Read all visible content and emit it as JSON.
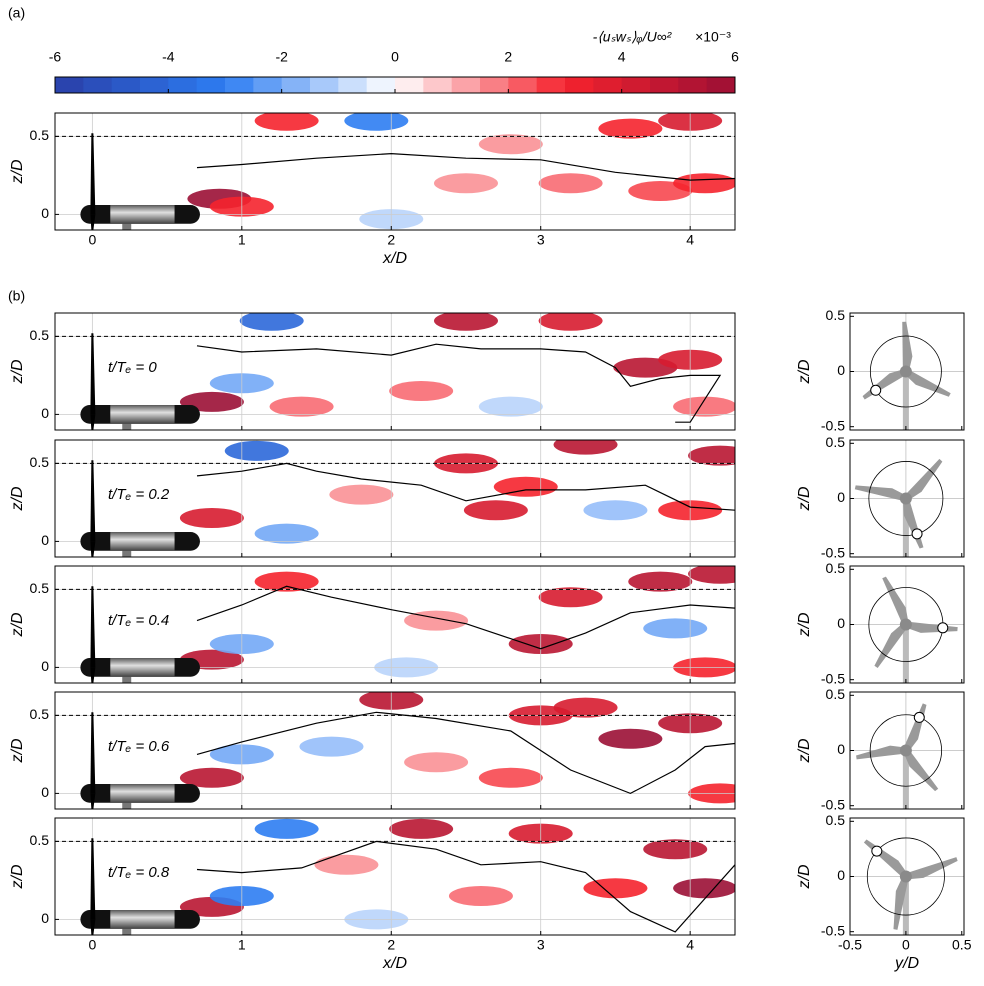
{
  "panel_labels": [
    "(a)",
    "(b)"
  ],
  "chart_data": [
    {
      "type": "colorbar",
      "title": "-⟨uₛwₛ⟩ᵩ/U∞²",
      "multiplier": "×10⁻³",
      "xlim": [
        -6,
        6
      ],
      "xticks": [
        -6,
        -4,
        -2,
        0,
        2,
        4,
        6
      ],
      "level_step": 0.5,
      "colormap": [
        {
          "value": -6,
          "color": "#2a3fa8"
        },
        {
          "value": -3,
          "color": "#2d7df2"
        },
        {
          "value": 0,
          "color": "#ffffff"
        },
        {
          "value": 3,
          "color": "#f5232d"
        },
        {
          "value": 6,
          "color": "#9b0f35"
        }
      ]
    },
    {
      "type": "contour",
      "xlabel": "x/D",
      "ylabel": "z/D",
      "xlim": [
        -0.25,
        4.3
      ],
      "ylim": [
        -0.1,
        0.65
      ],
      "xticks": [
        0,
        1,
        2,
        3,
        4
      ],
      "yticks": [
        0,
        0.5
      ],
      "hline": 0.5,
      "grid": true,
      "contour": {
        "x": [
          0.7,
          1.0,
          1.5,
          2.0,
          2.5,
          3.0,
          3.5,
          4.0,
          4.3
        ],
        "z": [
          0.3,
          0.32,
          0.36,
          0.39,
          0.36,
          0.35,
          0.27,
          0.22,
          0.23
        ]
      },
      "regions": [
        {
          "x": 0.85,
          "z": 0.1,
          "value": 6
        },
        {
          "x": 1.0,
          "z": 0.05,
          "value": 3
        },
        {
          "x": 2.5,
          "z": 0.2,
          "value": 1.5
        },
        {
          "x": 3.2,
          "z": 0.2,
          "value": 2
        },
        {
          "x": 3.8,
          "z": 0.15,
          "value": 2.5
        },
        {
          "x": 4.1,
          "z": 0.2,
          "value": 3
        },
        {
          "x": 3.6,
          "z": 0.55,
          "value": 3
        },
        {
          "x": 4.0,
          "z": 0.6,
          "value": 4
        },
        {
          "x": 2.0,
          "z": -0.03,
          "value": -1
        },
        {
          "x": 1.3,
          "z": 0.6,
          "value": 3
        },
        {
          "x": 1.9,
          "z": 0.6,
          "value": -3
        },
        {
          "x": 2.8,
          "z": 0.45,
          "value": 1.5
        }
      ]
    },
    {
      "type": "contour",
      "label": "t/Tₑ = 0",
      "ylabel": "z/D",
      "xlim": [
        -0.25,
        4.3
      ],
      "ylim": [
        -0.1,
        0.65
      ],
      "xticks": [
        0,
        1,
        2,
        3,
        4
      ],
      "yticks": [
        0,
        0.5
      ],
      "hline": 0.5,
      "grid": true,
      "contour": {
        "x": [
          0.7,
          1.0,
          1.5,
          2.0,
          2.3,
          2.6,
          3.0,
          3.3,
          3.5,
          3.6,
          3.8,
          4.0,
          4.2,
          4.1,
          4.0,
          3.9
        ],
        "z": [
          0.44,
          0.4,
          0.42,
          0.38,
          0.45,
          0.42,
          0.42,
          0.4,
          0.3,
          0.18,
          0.23,
          0.25,
          0.25,
          0.1,
          -0.05,
          -0.05
        ]
      },
      "regions": [
        {
          "x": 3.7,
          "z": 0.3,
          "value": 5
        },
        {
          "x": 4.0,
          "z": 0.35,
          "value": 4
        },
        {
          "x": 2.5,
          "z": 0.6,
          "value": 5
        },
        {
          "x": 3.2,
          "z": 0.6,
          "value": 4
        },
        {
          "x": 2.2,
          "z": 0.15,
          "value": 2
        },
        {
          "x": 1.4,
          "z": 0.05,
          "value": 2
        },
        {
          "x": 0.8,
          "z": 0.08,
          "value": 6
        },
        {
          "x": 1.0,
          "z": 0.2,
          "value": -2
        },
        {
          "x": 2.8,
          "z": 0.05,
          "value": -1
        },
        {
          "x": 4.1,
          "z": 0.05,
          "value": 2
        },
        {
          "x": 1.2,
          "z": 0.6,
          "value": -4
        }
      ]
    },
    {
      "type": "contour",
      "label": "t/Tₑ = 0.2",
      "ylabel": "z/D",
      "xlim": [
        -0.25,
        4.3
      ],
      "ylim": [
        -0.1,
        0.65
      ],
      "xticks": [
        0,
        1,
        2,
        3,
        4
      ],
      "yticks": [
        0,
        0.5
      ],
      "hline": 0.5,
      "grid": true,
      "contour": {
        "x": [
          0.7,
          1.0,
          1.3,
          1.5,
          1.8,
          2.2,
          2.5,
          2.9,
          3.3,
          3.7,
          4.0,
          4.3
        ],
        "z": [
          0.42,
          0.45,
          0.5,
          0.45,
          0.4,
          0.36,
          0.26,
          0.33,
          0.33,
          0.36,
          0.22,
          0.2
        ]
      },
      "regions": [
        {
          "x": 2.7,
          "z": 0.2,
          "value": 4
        },
        {
          "x": 2.9,
          "z": 0.35,
          "value": 3
        },
        {
          "x": 3.3,
          "z": 0.62,
          "value": 5
        },
        {
          "x": 4.2,
          "z": 0.55,
          "value": 5
        },
        {
          "x": 4.0,
          "z": 0.2,
          "value": 3
        },
        {
          "x": 2.5,
          "z": 0.5,
          "value": 4
        },
        {
          "x": 0.8,
          "z": 0.15,
          "value": 4
        },
        {
          "x": 1.3,
          "z": 0.05,
          "value": -2
        },
        {
          "x": 3.5,
          "z": 0.2,
          "value": -1.5
        },
        {
          "x": 1.8,
          "z": 0.3,
          "value": 1.5
        },
        {
          "x": 1.1,
          "z": 0.58,
          "value": -4
        }
      ]
    },
    {
      "type": "contour",
      "label": "t/Tₑ = 0.4",
      "ylabel": "z/D",
      "xlim": [
        -0.25,
        4.3
      ],
      "ylim": [
        -0.1,
        0.65
      ],
      "xticks": [
        0,
        1,
        2,
        3,
        4
      ],
      "yticks": [
        0,
        0.5
      ],
      "hline": 0.5,
      "grid": true,
      "contour": {
        "x": [
          0.7,
          1.0,
          1.3,
          1.6,
          2.0,
          2.5,
          3.0,
          3.3,
          3.6,
          4.0,
          4.3
        ],
        "z": [
          0.3,
          0.4,
          0.52,
          0.45,
          0.37,
          0.28,
          0.12,
          0.22,
          0.35,
          0.4,
          0.38
        ]
      },
      "regions": [
        {
          "x": 3.0,
          "z": 0.15,
          "value": 5
        },
        {
          "x": 3.2,
          "z": 0.45,
          "value": 4
        },
        {
          "x": 3.8,
          "z": 0.55,
          "value": 5
        },
        {
          "x": 4.2,
          "z": 0.6,
          "value": 5
        },
        {
          "x": 3.9,
          "z": 0.25,
          "value": -2
        },
        {
          "x": 2.3,
          "z": 0.3,
          "value": 1.5
        },
        {
          "x": 0.8,
          "z": 0.05,
          "value": 5
        },
        {
          "x": 1.0,
          "z": 0.15,
          "value": -2
        },
        {
          "x": 2.1,
          "z": 0.0,
          "value": -1
        },
        {
          "x": 1.3,
          "z": 0.55,
          "value": 3
        },
        {
          "x": 4.1,
          "z": 0.0,
          "value": 3
        }
      ]
    },
    {
      "type": "contour",
      "label": "t/Tₑ = 0.6",
      "ylabel": "z/D",
      "xlim": [
        -0.25,
        4.3
      ],
      "ylim": [
        -0.1,
        0.65
      ],
      "xticks": [
        0,
        1,
        2,
        3,
        4
      ],
      "yticks": [
        0,
        0.5
      ],
      "hline": 0.5,
      "grid": true,
      "contour": {
        "x": [
          0.7,
          1.0,
          1.5,
          1.9,
          2.3,
          2.8,
          3.2,
          3.6,
          3.9,
          4.1,
          4.3
        ],
        "z": [
          0.25,
          0.33,
          0.45,
          0.52,
          0.48,
          0.4,
          0.15,
          0.0,
          0.15,
          0.3,
          0.32
        ]
      },
      "regions": [
        {
          "x": 3.6,
          "z": 0.35,
          "value": 6
        },
        {
          "x": 4.0,
          "z": 0.45,
          "value": 5
        },
        {
          "x": 2.0,
          "z": 0.6,
          "value": 5
        },
        {
          "x": 3.0,
          "z": 0.5,
          "value": 4
        },
        {
          "x": 2.8,
          "z": 0.1,
          "value": 2.5
        },
        {
          "x": 4.2,
          "z": 0.0,
          "value": 3
        },
        {
          "x": 0.8,
          "z": 0.1,
          "value": 5
        },
        {
          "x": 1.6,
          "z": 0.3,
          "value": -1.5
        },
        {
          "x": 2.3,
          "z": 0.2,
          "value": 1.5
        },
        {
          "x": 1.0,
          "z": 0.25,
          "value": -2
        },
        {
          "x": 3.3,
          "z": 0.55,
          "value": 4
        }
      ]
    },
    {
      "type": "contour",
      "label": "t/Tₑ = 0.8",
      "xlabel": "x/D",
      "ylabel": "z/D",
      "xlim": [
        -0.25,
        4.3
      ],
      "ylim": [
        -0.1,
        0.65
      ],
      "xticks": [
        0,
        1,
        2,
        3,
        4
      ],
      "yticks": [
        0,
        0.5
      ],
      "hline": 0.5,
      "grid": true,
      "contour": {
        "x": [
          0.7,
          1.0,
          1.4,
          1.9,
          2.3,
          2.6,
          3.0,
          3.3,
          3.6,
          3.9,
          4.3
        ],
        "z": [
          0.32,
          0.3,
          0.33,
          0.5,
          0.45,
          0.35,
          0.37,
          0.3,
          0.05,
          -0.08,
          0.35
        ]
      },
      "regions": [
        {
          "x": 4.1,
          "z": 0.2,
          "value": 6
        },
        {
          "x": 3.9,
          "z": 0.45,
          "value": 5
        },
        {
          "x": 2.2,
          "z": 0.58,
          "value": 5
        },
        {
          "x": 3.0,
          "z": 0.55,
          "value": 4
        },
        {
          "x": 3.5,
          "z": 0.2,
          "value": 3
        },
        {
          "x": 2.6,
          "z": 0.15,
          "value": 2
        },
        {
          "x": 0.8,
          "z": 0.08,
          "value": 5
        },
        {
          "x": 1.0,
          "z": 0.15,
          "value": -3
        },
        {
          "x": 1.9,
          "z": 0.0,
          "value": -1
        },
        {
          "x": 1.3,
          "z": 0.58,
          "value": -3
        },
        {
          "x": 1.7,
          "z": 0.35,
          "value": 1.5
        }
      ]
    },
    {
      "type": "rotor",
      "ylabel": "z/D",
      "xlim": [
        -0.5,
        0.52
      ],
      "ylim": [
        -0.53,
        0.53
      ],
      "xticks": [
        -0.5,
        0,
        0.5
      ],
      "yticks": [
        -0.5,
        0,
        0.5
      ],
      "marker": {
        "y": -0.27,
        "z": -0.17
      }
    },
    {
      "type": "rotor",
      "ylabel": "z/D",
      "xlim": [
        -0.5,
        0.52
      ],
      "ylim": [
        -0.53,
        0.53
      ],
      "xticks": [
        -0.5,
        0,
        0.5
      ],
      "yticks": [
        -0.5,
        0,
        0.5
      ],
      "marker": {
        "y": 0.1,
        "z": -0.32
      }
    },
    {
      "type": "rotor",
      "ylabel": "z/D",
      "xlim": [
        -0.5,
        0.52
      ],
      "ylim": [
        -0.53,
        0.53
      ],
      "xticks": [
        -0.5,
        0,
        0.5
      ],
      "yticks": [
        -0.5,
        0,
        0.5
      ],
      "marker": {
        "y": 0.33,
        "z": -0.03
      }
    },
    {
      "type": "rotor",
      "ylabel": "z/D",
      "xlim": [
        -0.5,
        0.52
      ],
      "ylim": [
        -0.53,
        0.53
      ],
      "xticks": [
        -0.5,
        0,
        0.5
      ],
      "yticks": [
        -0.5,
        0,
        0.5
      ],
      "marker": {
        "y": 0.12,
        "z": 0.3
      }
    },
    {
      "type": "rotor",
      "xlabel": "y/D",
      "ylabel": "z/D",
      "xlim": [
        -0.5,
        0.52
      ],
      "ylim": [
        -0.53,
        0.53
      ],
      "xticks": [
        -0.5,
        0,
        0.5
      ],
      "yticks": [
        -0.5,
        0,
        0.5
      ],
      "marker": {
        "y": -0.26,
        "z": 0.23
      }
    }
  ]
}
